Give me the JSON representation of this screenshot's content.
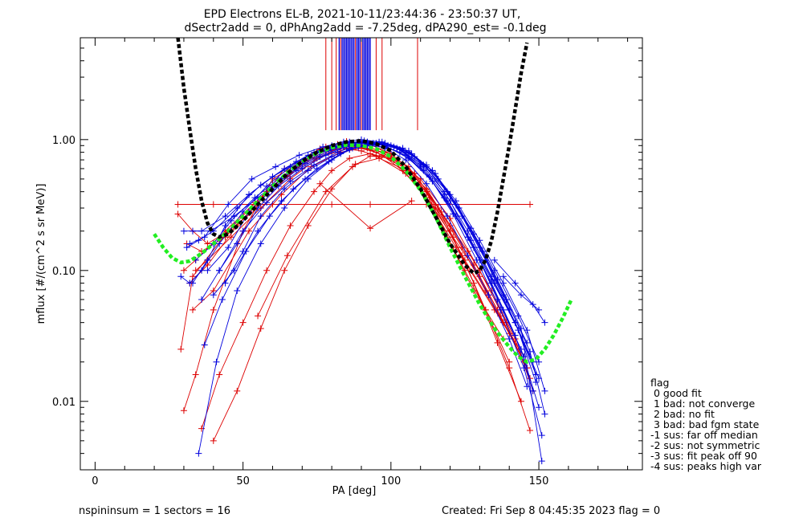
{
  "chart_data": {
    "type": "line",
    "title_line1": "EPD Electrons EL-B, 2021-10-11/23:44:36 - 23:50:37 UT,",
    "title_line2": "dSectr2add = 0, dPhAng2add = -7.25deg, dPA290_est=  -0.1deg",
    "xlabel": "PA [deg]",
    "ylabel": "mflux [#/(cm^2 s sr MeV)]",
    "xlim": [
      -5,
      185
    ],
    "ylim": [
      0.003,
      6.0
    ],
    "yscale": "log",
    "x_ticks": [
      0,
      50,
      100,
      150
    ],
    "x_tick_labels": [
      "0",
      "50",
      "100",
      "150"
    ],
    "y_ticks": [
      0.01,
      0.1,
      1.0
    ],
    "y_tick_labels": [
      "0.01",
      "0.10",
      "1.00"
    ],
    "grid": false,
    "legend": {
      "placement": "right",
      "title": "flag",
      "entries": [
        " 0 good fit",
        " 1 bad: not converge",
        " 2 bad: no fit",
        " 3 bad: bad fgm state",
        "-1 sus: far off median",
        "-2 sus: not symmetric",
        "-3 sus: fit peak off 90",
        "-4 sus: peaks high var"
      ]
    },
    "colors": {
      "red": "#dd0000",
      "blue": "#0000dd",
      "black": "#000000",
      "green": "#22ee22"
    },
    "black_fit": {
      "color": "#000000",
      "x": [
        28,
        30,
        32,
        34,
        36,
        38,
        40,
        42,
        45,
        50,
        55,
        60,
        65,
        70,
        75,
        80,
        85,
        90,
        95,
        100,
        105,
        110,
        115,
        120,
        125,
        128,
        130,
        132,
        134,
        136,
        138,
        140,
        142,
        144,
        146
      ],
      "y": [
        6.0,
        2.5,
        1.2,
        0.6,
        0.34,
        0.23,
        0.19,
        0.18,
        0.19,
        0.24,
        0.32,
        0.42,
        0.55,
        0.68,
        0.8,
        0.9,
        0.96,
        0.98,
        0.93,
        0.82,
        0.62,
        0.42,
        0.26,
        0.16,
        0.11,
        0.095,
        0.1,
        0.12,
        0.17,
        0.28,
        0.5,
        0.9,
        1.7,
        3.2,
        5.5
      ]
    },
    "green_fit": {
      "color": "#22ee22",
      "x": [
        20,
        23,
        26,
        29,
        32,
        36,
        40,
        45,
        50,
        55,
        60,
        65,
        70,
        75,
        80,
        85,
        90,
        95,
        100,
        105,
        110,
        115,
        120,
        125,
        130,
        135,
        140,
        143,
        146,
        149,
        152,
        155,
        158,
        161
      ],
      "y": [
        0.19,
        0.15,
        0.125,
        0.115,
        0.118,
        0.135,
        0.16,
        0.2,
        0.26,
        0.34,
        0.44,
        0.56,
        0.68,
        0.79,
        0.87,
        0.91,
        0.9,
        0.85,
        0.74,
        0.58,
        0.41,
        0.26,
        0.15,
        0.09,
        0.055,
        0.036,
        0.026,
        0.022,
        0.02,
        0.021,
        0.025,
        0.032,
        0.043,
        0.06
      ]
    },
    "red_series": [
      {
        "x": [
          29,
          33,
          45,
          60,
          75,
          85,
          90,
          95,
          105,
          115,
          125,
          138,
          145
        ],
        "y": [
          0.025,
          0.09,
          0.2,
          0.45,
          0.72,
          0.85,
          0.82,
          0.75,
          0.55,
          0.3,
          0.12,
          0.04,
          0.02
        ]
      },
      {
        "x": [
          30,
          34,
          40,
          50,
          60,
          75,
          88,
          95,
          105,
          112,
          118,
          125,
          132,
          140
        ],
        "y": [
          0.0085,
          0.016,
          0.05,
          0.2,
          0.5,
          0.8,
          0.88,
          0.8,
          0.6,
          0.36,
          0.2,
          0.1,
          0.05,
          0.02
        ]
      },
      {
        "x": [
          31,
          36,
          44,
          55,
          64,
          76,
          82,
          90,
          100,
          110,
          122,
          135,
          145
        ],
        "y": [
          0.16,
          0.14,
          0.18,
          0.32,
          0.6,
          0.85,
          0.92,
          0.88,
          0.72,
          0.42,
          0.15,
          0.05,
          0.022
        ]
      },
      {
        "x": [
          32,
          38,
          48,
          58,
          68,
          78,
          85,
          92,
          102,
          112,
          120,
          128,
          136,
          146
        ],
        "y": [
          0.08,
          0.11,
          0.22,
          0.4,
          0.62,
          0.82,
          0.92,
          0.9,
          0.7,
          0.42,
          0.22,
          0.11,
          0.05,
          0.018
        ]
      },
      {
        "x": [
          33,
          40,
          52,
          63,
          73,
          83,
          90,
          98,
          106,
          113,
          119,
          128,
          138
        ],
        "y": [
          0.05,
          0.07,
          0.2,
          0.38,
          0.62,
          0.8,
          0.86,
          0.8,
          0.62,
          0.36,
          0.18,
          0.07,
          0.03
        ]
      },
      {
        "x": [
          28,
          33,
          38,
          45,
          55,
          65,
          72,
          78,
          85,
          93,
          100,
          108,
          116,
          124,
          132,
          140,
          146
        ],
        "y": [
          0.27,
          0.2,
          0.16,
          0.2,
          0.3,
          0.52,
          0.72,
          0.88,
          0.97,
          0.92,
          0.76,
          0.52,
          0.3,
          0.15,
          0.07,
          0.033,
          0.018
        ]
      },
      {
        "x": [
          34,
          38,
          46,
          56,
          66,
          76,
          84,
          92,
          100,
          108,
          117,
          126,
          134,
          142,
          148
        ],
        "y": [
          0.1,
          0.12,
          0.18,
          0.3,
          0.5,
          0.74,
          0.9,
          0.94,
          0.78,
          0.55,
          0.28,
          0.14,
          0.07,
          0.03,
          0.012
        ]
      },
      {
        "x": [
          30,
          34,
          44,
          54,
          64,
          74,
          80,
          86,
          92,
          97,
          104,
          112,
          121,
          130,
          137,
          144
        ],
        "y": [
          0.1,
          0.12,
          0.2,
          0.33,
          0.52,
          0.72,
          0.84,
          0.9,
          0.86,
          0.76,
          0.58,
          0.36,
          0.18,
          0.09,
          0.045,
          0.022
        ]
      },
      {
        "x": [
          36,
          42,
          50,
          58,
          66,
          74,
          80,
          86,
          93,
          101,
          110,
          120,
          130,
          139,
          147
        ],
        "y": [
          0.0062,
          0.016,
          0.04,
          0.1,
          0.22,
          0.4,
          0.58,
          0.72,
          0.78,
          0.7,
          0.5,
          0.25,
          0.1,
          0.04,
          0.015
        ]
      },
      {
        "x": [
          40,
          48,
          56,
          64,
          72,
          80,
          87,
          93,
          100,
          108,
          116,
          124,
          132,
          140,
          147
        ],
        "y": [
          0.005,
          0.012,
          0.036,
          0.1,
          0.22,
          0.42,
          0.62,
          0.75,
          0.72,
          0.55,
          0.3,
          0.13,
          0.05,
          0.018,
          0.006
        ]
      },
      {
        "x": [
          55,
          65,
          78,
          88,
          96,
          104,
          112,
          120,
          128,
          136,
          144
        ],
        "y": [
          0.045,
          0.13,
          0.4,
          0.65,
          0.72,
          0.6,
          0.4,
          0.2,
          0.08,
          0.028,
          0.01
        ]
      },
      {
        "x": [
          28,
          40,
          60,
          80,
          93,
          112,
          147
        ],
        "y": [
          0.32,
          0.32,
          0.32,
          0.32,
          0.32,
          0.32,
          0.32
        ]
      },
      {
        "x": [
          76,
          93,
          107
        ],
        "y": [
          0.46,
          0.21,
          0.34
        ]
      }
    ],
    "blue_series": [
      {
        "x": [
          29,
          32,
          36,
          42,
          50,
          58,
          66,
          74,
          80,
          86,
          92,
          98,
          105,
          112,
          119,
          126,
          133,
          140,
          146
        ],
        "y": [
          0.09,
          0.08,
          0.1,
          0.16,
          0.28,
          0.44,
          0.62,
          0.8,
          0.9,
          0.96,
          0.94,
          0.86,
          0.7,
          0.46,
          0.26,
          0.13,
          0.065,
          0.03,
          0.013
        ]
      },
      {
        "x": [
          31,
          35,
          40,
          48,
          56,
          64,
          72,
          80,
          86,
          92,
          98,
          106,
          114,
          122,
          130,
          138,
          145
        ],
        "y": [
          0.15,
          0.17,
          0.2,
          0.3,
          0.45,
          0.6,
          0.76,
          0.88,
          0.95,
          0.96,
          0.9,
          0.72,
          0.48,
          0.26,
          0.12,
          0.05,
          0.022
        ]
      },
      {
        "x": [
          33,
          38,
          44,
          52,
          60,
          68,
          76,
          83,
          89,
          95,
          102,
          110,
          118,
          126,
          134,
          142,
          148
        ],
        "y": [
          0.08,
          0.12,
          0.22,
          0.38,
          0.52,
          0.66,
          0.8,
          0.9,
          0.96,
          0.94,
          0.86,
          0.64,
          0.38,
          0.18,
          0.08,
          0.032,
          0.012
        ]
      },
      {
        "x": [
          34,
          40,
          46,
          54,
          62,
          70,
          78,
          85,
          91,
          97,
          104,
          112,
          120,
          128,
          136,
          144,
          150
        ],
        "y": [
          0.12,
          0.16,
          0.24,
          0.36,
          0.5,
          0.66,
          0.82,
          0.92,
          0.98,
          0.96,
          0.86,
          0.62,
          0.34,
          0.15,
          0.06,
          0.025,
          0.009
        ]
      },
      {
        "x": [
          35,
          41,
          48,
          56,
          64,
          72,
          80,
          86,
          92,
          98,
          105,
          113,
          121,
          129,
          137,
          145,
          151
        ],
        "y": [
          0.004,
          0.02,
          0.07,
          0.16,
          0.3,
          0.5,
          0.7,
          0.84,
          0.9,
          0.88,
          0.76,
          0.52,
          0.27,
          0.12,
          0.05,
          0.018,
          0.0055
        ]
      },
      {
        "x": [
          36,
          42,
          50,
          58,
          66,
          74,
          82,
          88,
          94,
          100,
          107,
          115,
          123,
          131,
          139,
          147,
          152
        ],
        "y": [
          0.06,
          0.1,
          0.2,
          0.33,
          0.48,
          0.64,
          0.8,
          0.9,
          0.94,
          0.9,
          0.78,
          0.55,
          0.3,
          0.14,
          0.06,
          0.024,
          0.008
        ]
      },
      {
        "x": [
          33,
          39,
          47,
          55,
          63,
          71,
          79,
          86,
          92,
          98,
          106,
          114,
          122,
          130,
          138,
          146
        ],
        "y": [
          0.2,
          0.2,
          0.26,
          0.36,
          0.5,
          0.66,
          0.82,
          0.92,
          0.96,
          0.94,
          0.82,
          0.58,
          0.32,
          0.15,
          0.065,
          0.028
        ]
      },
      {
        "x": [
          37,
          43,
          51,
          59,
          67,
          75,
          83,
          89,
          95,
          101,
          108,
          116,
          124,
          132,
          140,
          148
        ],
        "y": [
          0.027,
          0.06,
          0.14,
          0.26,
          0.42,
          0.6,
          0.78,
          0.88,
          0.92,
          0.88,
          0.74,
          0.5,
          0.26,
          0.12,
          0.05,
          0.02
        ]
      },
      {
        "x": [
          30,
          36,
          44,
          52,
          60,
          68,
          76,
          84,
          90,
          96,
          103,
          111,
          119,
          127,
          135,
          143,
          149
        ],
        "y": [
          0.2,
          0.2,
          0.26,
          0.38,
          0.52,
          0.68,
          0.82,
          0.92,
          0.96,
          0.92,
          0.8,
          0.58,
          0.34,
          0.17,
          0.08,
          0.035,
          0.014
        ]
      },
      {
        "x": [
          38,
          45,
          52,
          60,
          68,
          76,
          84,
          90,
          96,
          102,
          110,
          118,
          126,
          134,
          142,
          150
        ],
        "y": [
          0.1,
          0.15,
          0.28,
          0.42,
          0.58,
          0.74,
          0.88,
          0.94,
          0.94,
          0.86,
          0.66,
          0.4,
          0.2,
          0.09,
          0.04,
          0.015
        ]
      },
      {
        "x": [
          40,
          47,
          55,
          63,
          71,
          79,
          86,
          92,
          98,
          104,
          112,
          120,
          128,
          136,
          144,
          151
        ],
        "y": [
          0.065,
          0.1,
          0.2,
          0.34,
          0.5,
          0.68,
          0.84,
          0.92,
          0.92,
          0.84,
          0.64,
          0.38,
          0.19,
          0.085,
          0.036,
          0.0035
        ]
      },
      {
        "x": [
          32,
          37,
          45,
          53,
          61,
          69,
          77,
          84,
          90,
          96,
          103,
          110,
          118,
          126,
          134,
          142,
          149
        ],
        "y": [
          0.16,
          0.18,
          0.32,
          0.5,
          0.62,
          0.76,
          0.88,
          0.96,
          1.0,
          0.96,
          0.84,
          0.62,
          0.36,
          0.18,
          0.085,
          0.04,
          0.016
        ]
      },
      {
        "x": [
          42,
          48,
          55,
          62,
          70,
          78,
          85,
          91,
          97,
          103,
          111,
          119,
          127,
          135,
          143,
          150
        ],
        "y": [
          0.1,
          0.16,
          0.3,
          0.44,
          0.6,
          0.76,
          0.88,
          0.94,
          0.92,
          0.84,
          0.64,
          0.4,
          0.21,
          0.1,
          0.045,
          0.02
        ]
      },
      {
        "x": [
          44,
          50,
          56,
          64,
          72,
          80,
          87,
          93,
          99,
          106,
          114,
          122,
          130,
          138,
          146,
          152
        ],
        "y": [
          0.08,
          0.14,
          0.26,
          0.42,
          0.58,
          0.74,
          0.86,
          0.92,
          0.9,
          0.8,
          0.58,
          0.34,
          0.17,
          0.08,
          0.035,
          0.012
        ]
      },
      {
        "x": [
          135,
          142,
          148,
          152
        ],
        "y": [
          0.12,
          0.08,
          0.055,
          0.04
        ]
      },
      {
        "x": [
          138,
          144,
          150
        ],
        "y": [
          0.09,
          0.065,
          0.05
        ]
      }
    ],
    "vlines": {
      "y_bottom": 1.18,
      "red_x": [
        78,
        80,
        81.5,
        83,
        88,
        90,
        95,
        97,
        109
      ],
      "blue_x": [
        82.5,
        83.5,
        84,
        84.5,
        85,
        85.5,
        86,
        86.5,
        87,
        87.5,
        88.5,
        89,
        89.5,
        90.5,
        91,
        91.5,
        92,
        92.5,
        93
      ]
    },
    "footer_left": "nspininsum =  1  sectors = 16",
    "footer_right": "Created: Fri Sep  8 04:45:35 2023   flag = 0"
  }
}
